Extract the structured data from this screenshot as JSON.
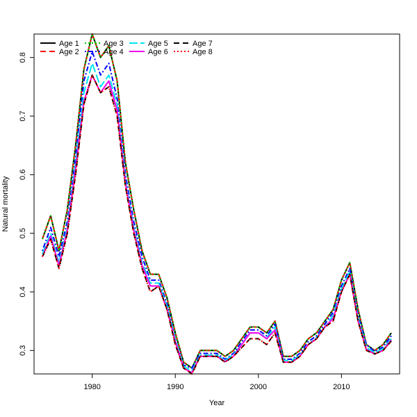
{
  "chart_data": {
    "type": "line",
    "title": "",
    "xlabel": "Year",
    "ylabel": "Natural mortality",
    "xlim": [
      1973,
      2017
    ],
    "ylim": [
      0.26,
      0.84
    ],
    "x_ticks": [
      1980,
      1990,
      2000,
      2010
    ],
    "y_ticks": [
      0.3,
      0.4,
      0.5,
      0.6,
      0.7,
      0.8
    ],
    "x_tick_labels": [
      "1980",
      "1990",
      "2000",
      "2010"
    ],
    "y_tick_labels": [
      "0.3",
      "0.4",
      "0.5",
      "0.6",
      "0.7",
      "0.8"
    ],
    "grid": false,
    "legend_position": "top-left",
    "x": [
      1974,
      1975,
      1976,
      1977,
      1978,
      1979,
      1980,
      1981,
      1982,
      1983,
      1984,
      1985,
      1986,
      1987,
      1988,
      1989,
      1990,
      1991,
      1992,
      1993,
      1994,
      1995,
      1996,
      1997,
      1998,
      1999,
      2000,
      2001,
      2002,
      2003,
      2004,
      2005,
      2006,
      2007,
      2008,
      2009,
      2010,
      2011,
      2012,
      2013,
      2014,
      2015,
      2016
    ],
    "series": [
      {
        "name": "Age 1",
        "color": "#000000",
        "dash": "",
        "values": [
          0.49,
          0.53,
          0.47,
          0.54,
          0.65,
          0.78,
          0.84,
          0.8,
          0.82,
          0.76,
          0.62,
          0.54,
          0.47,
          0.43,
          0.43,
          0.39,
          0.33,
          0.28,
          0.27,
          0.3,
          0.3,
          0.3,
          0.29,
          0.3,
          0.32,
          0.34,
          0.34,
          0.33,
          0.35,
          0.29,
          0.29,
          0.3,
          0.32,
          0.33,
          0.35,
          0.37,
          0.42,
          0.45,
          0.37,
          0.31,
          0.3,
          0.31,
          0.33
        ]
      },
      {
        "name": "Age 2",
        "color": "#ff0000",
        "dash": "8,5",
        "values": [
          0.49,
          0.53,
          0.47,
          0.54,
          0.65,
          0.78,
          0.84,
          0.8,
          0.82,
          0.76,
          0.62,
          0.54,
          0.47,
          0.43,
          0.43,
          0.39,
          0.33,
          0.28,
          0.27,
          0.3,
          0.3,
          0.3,
          0.29,
          0.3,
          0.32,
          0.34,
          0.34,
          0.33,
          0.35,
          0.29,
          0.29,
          0.3,
          0.32,
          0.33,
          0.35,
          0.37,
          0.42,
          0.45,
          0.37,
          0.31,
          0.3,
          0.31,
          0.33
        ]
      },
      {
        "name": "Age 3",
        "color": "#00cd00",
        "dash": "2,3",
        "values": [
          0.49,
          0.53,
          0.47,
          0.54,
          0.65,
          0.78,
          0.84,
          0.8,
          0.82,
          0.76,
          0.62,
          0.54,
          0.47,
          0.43,
          0.43,
          0.39,
          0.33,
          0.28,
          0.27,
          0.3,
          0.3,
          0.3,
          0.29,
          0.3,
          0.32,
          0.34,
          0.34,
          0.33,
          0.35,
          0.29,
          0.29,
          0.3,
          0.32,
          0.33,
          0.35,
          0.37,
          0.42,
          0.45,
          0.37,
          0.31,
          0.3,
          0.31,
          0.33
        ]
      },
      {
        "name": "Age 4",
        "color": "#0000ff",
        "dash": "2,3,7,3",
        "values": [
          0.47,
          0.51,
          0.46,
          0.52,
          0.63,
          0.76,
          0.81,
          0.77,
          0.79,
          0.73,
          0.6,
          0.52,
          0.46,
          0.42,
          0.42,
          0.38,
          0.32,
          0.275,
          0.27,
          0.295,
          0.295,
          0.295,
          0.285,
          0.295,
          0.315,
          0.335,
          0.335,
          0.325,
          0.345,
          0.285,
          0.285,
          0.295,
          0.315,
          0.325,
          0.345,
          0.365,
          0.41,
          0.44,
          0.36,
          0.31,
          0.298,
          0.306,
          0.325
        ]
      },
      {
        "name": "Age 5",
        "color": "#00e5ee",
        "dash": "12,4",
        "values": [
          0.465,
          0.5,
          0.45,
          0.51,
          0.62,
          0.74,
          0.79,
          0.75,
          0.77,
          0.72,
          0.59,
          0.51,
          0.45,
          0.415,
          0.415,
          0.375,
          0.32,
          0.273,
          0.265,
          0.292,
          0.292,
          0.292,
          0.283,
          0.293,
          0.31,
          0.33,
          0.33,
          0.322,
          0.34,
          0.283,
          0.283,
          0.292,
          0.31,
          0.322,
          0.34,
          0.36,
          0.405,
          0.435,
          0.355,
          0.305,
          0.296,
          0.303,
          0.32
        ]
      },
      {
        "name": "Age 6",
        "color": "#ee00ee",
        "dash": "",
        "values": [
          0.46,
          0.495,
          0.445,
          0.505,
          0.61,
          0.725,
          0.77,
          0.74,
          0.76,
          0.71,
          0.585,
          0.505,
          0.445,
          0.41,
          0.41,
          0.37,
          0.315,
          0.27,
          0.262,
          0.29,
          0.29,
          0.29,
          0.281,
          0.29,
          0.31,
          0.33,
          0.33,
          0.32,
          0.335,
          0.28,
          0.28,
          0.29,
          0.31,
          0.32,
          0.34,
          0.355,
          0.4,
          0.43,
          0.35,
          0.302,
          0.294,
          0.3,
          0.318
        ]
      },
      {
        "name": "Age 7",
        "color": "#000000",
        "dash": "8,5",
        "values": [
          0.46,
          0.49,
          0.44,
          0.5,
          0.6,
          0.72,
          0.77,
          0.74,
          0.75,
          0.7,
          0.58,
          0.5,
          0.44,
          0.4,
          0.41,
          0.37,
          0.31,
          0.27,
          0.26,
          0.29,
          0.29,
          0.29,
          0.28,
          0.29,
          0.305,
          0.32,
          0.32,
          0.31,
          0.33,
          0.28,
          0.28,
          0.29,
          0.31,
          0.32,
          0.34,
          0.35,
          0.4,
          0.43,
          0.35,
          0.3,
          0.294,
          0.3,
          0.316
        ]
      },
      {
        "name": "Age 8",
        "color": "#ff0000",
        "dash": "2,3",
        "values": [
          0.46,
          0.49,
          0.44,
          0.5,
          0.6,
          0.72,
          0.77,
          0.74,
          0.75,
          0.7,
          0.58,
          0.5,
          0.44,
          0.4,
          0.41,
          0.37,
          0.31,
          0.27,
          0.26,
          0.29,
          0.29,
          0.29,
          0.28,
          0.29,
          0.305,
          0.32,
          0.32,
          0.31,
          0.33,
          0.28,
          0.28,
          0.29,
          0.31,
          0.32,
          0.34,
          0.35,
          0.4,
          0.43,
          0.35,
          0.3,
          0.294,
          0.3,
          0.316
        ]
      }
    ]
  }
}
